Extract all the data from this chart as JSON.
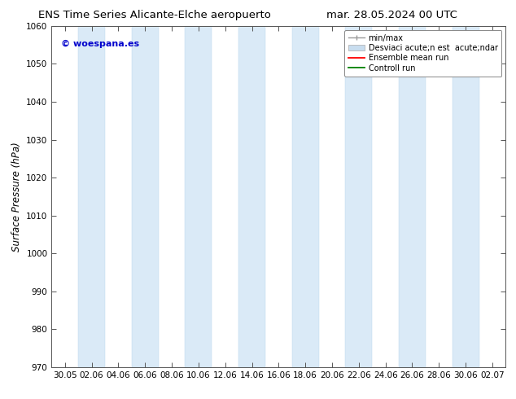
{
  "title_left": "ENS Time Series Alicante-Elche aeropuerto",
  "title_right": "mar. 28.05.2024 00 UTC",
  "ylabel": "Surface Pressure (hPa)",
  "watermark": "© woespana.es",
  "watermark_color": "#0000cc",
  "ylim": [
    970,
    1060
  ],
  "yticks": [
    970,
    980,
    990,
    1000,
    1010,
    1020,
    1030,
    1040,
    1050,
    1060
  ],
  "x_tick_labels": [
    "30.05",
    "02.06",
    "04.06",
    "06.06",
    "08.06",
    "10.06",
    "12.06",
    "14.06",
    "16.06",
    "18.06",
    "20.06",
    "22.06",
    "24.06",
    "26.06",
    "28.06",
    "30.06",
    "02.07"
  ],
  "band_positions": [
    1,
    3,
    5,
    7,
    9,
    11,
    13,
    15
  ],
  "band_color": "#daeaf7",
  "band_edge_color": "#b8d4ec",
  "background_color": "#ffffff",
  "legend_items": [
    {
      "label": "min/max",
      "color": "#aaaaaa",
      "type": "errorbar"
    },
    {
      "label": "Desviaci acute;n est  acute;ndar",
      "color": "#c8ddef",
      "type": "bar"
    },
    {
      "label": "Ensemble mean run",
      "color": "#ff0000",
      "type": "line"
    },
    {
      "label": "Controll run",
      "color": "#008000",
      "type": "line"
    }
  ],
  "title_fontsize": 9.5,
  "tick_fontsize": 7.5,
  "ylabel_fontsize": 8.5,
  "legend_fontsize": 7
}
